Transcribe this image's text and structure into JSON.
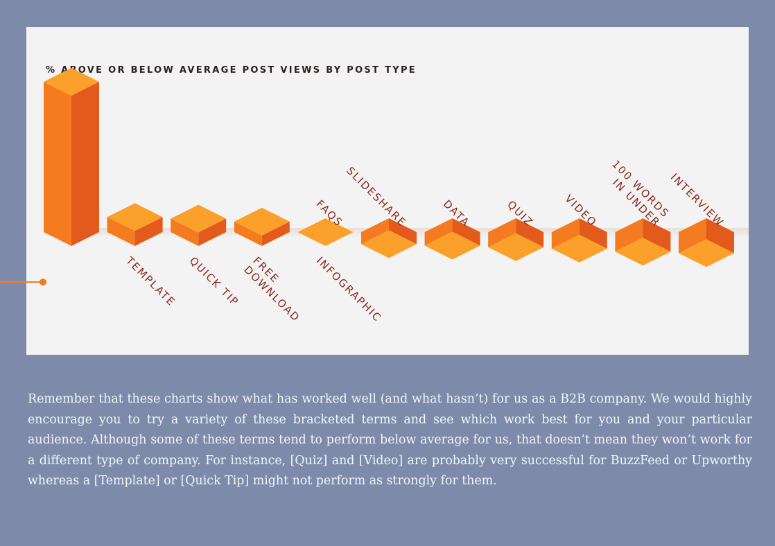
{
  "chart_data": {
    "type": "bar",
    "title": "% ABOVE OR BELOW AVERAGE POST VIEWS BY POST TYPE",
    "categories": [
      [
        "TEMPLATE"
      ],
      [
        "QUICK TIP"
      ],
      [
        "FREE",
        "DOWNLOAD"
      ],
      [
        "INFOGRAPHIC"
      ],
      [
        "FAQS"
      ],
      [
        "SLIDESHARE"
      ],
      [
        "DATA"
      ],
      [
        "QUIZ"
      ],
      [
        "VIDEO"
      ],
      [
        "IN UNDER",
        "100 WORDS"
      ],
      [
        "INTERVIEW"
      ]
    ],
    "values": [
      100,
      10,
      9,
      7,
      0,
      -8,
      -9,
      -10,
      -11,
      -13,
      -14
    ],
    "label_side": [
      "below",
      "below",
      "below",
      "below",
      "above",
      "above",
      "above",
      "above",
      "above",
      "above",
      "above"
    ],
    "colors": {
      "top": "#fba02a",
      "front": "#f47b20",
      "side": "#e25a1c",
      "label": "#8a2a1e",
      "shadow": "#e8dcd6"
    }
  },
  "body_text": "Remember that these charts show what has worked well (and what hasn’t) for us as a B2B company. We would highly encourage you to try a variety of these bracketed terms and see which work best for you and your particular audience. Although some of these terms tend to perform below average for us, that doesn’t mean they won’t work for a different type of company. For instance, [Quiz] and [Video] are probably very successful for BuzzFeed or Upworthy whereas a [Template] or [Quick Tip] might not perform as strongly for them."
}
